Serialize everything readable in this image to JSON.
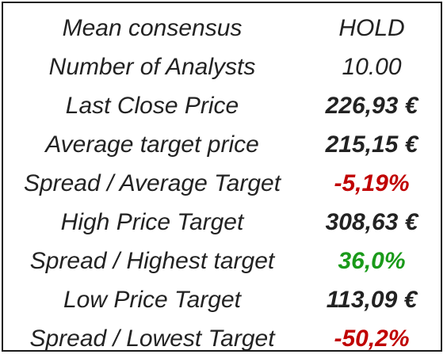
{
  "consensus_table": {
    "rows": [
      {
        "label": "Mean consensus",
        "value": "HOLD"
      },
      {
        "label": "Number of Analysts",
        "value": "10.00"
      },
      {
        "label": "Last Close Price",
        "value": "226,93 €"
      },
      {
        "label": "Average target price",
        "value": "215,15 €"
      },
      {
        "label": "Spread / Average Target",
        "value": "-5,19%"
      },
      {
        "label": "High Price Target",
        "value": "308,63 €"
      },
      {
        "label": "Spread / Highest target",
        "value": "36,0%"
      },
      {
        "label": "Low Price Target",
        "value": "113,09 €"
      },
      {
        "label": "Spread / Lowest Target",
        "value": "-50,2%"
      }
    ]
  },
  "colors": {
    "negative": "#c00000",
    "positive": "#1a9a1a",
    "text": "#222222",
    "border": "#1a1a1a"
  }
}
